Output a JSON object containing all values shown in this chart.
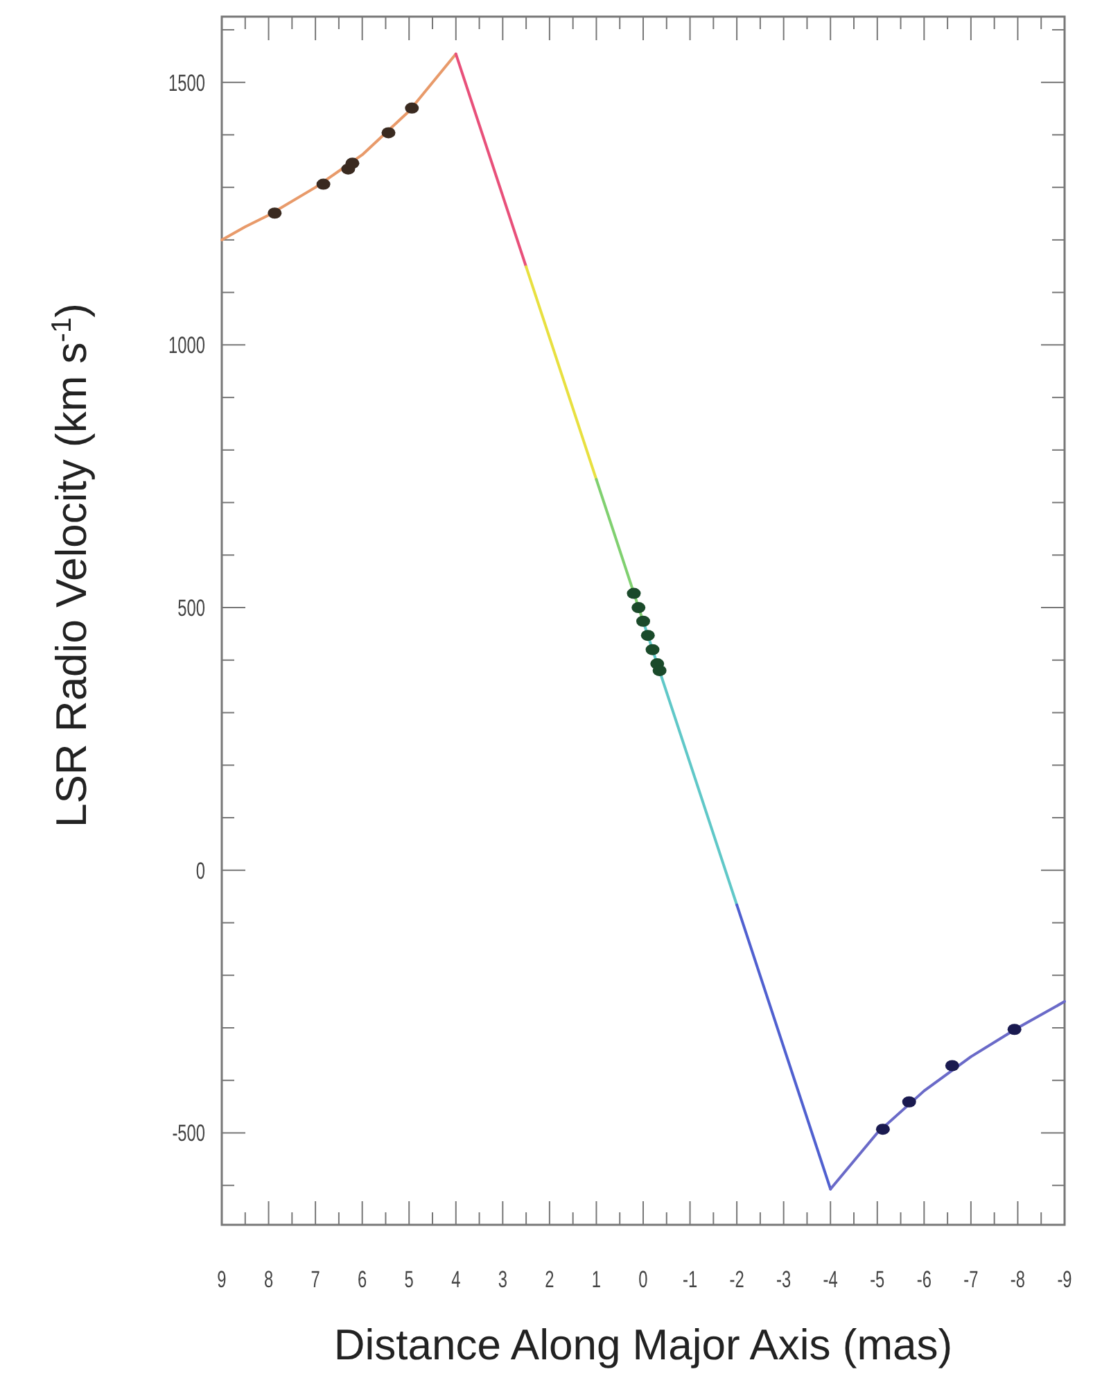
{
  "chart_data": {
    "type": "line",
    "xlabel": "Distance Along Major Axis (mas)",
    "ylabel": "LSR Radio Velocity (km s$^{-1}$)",
    "xlim": [
      9,
      -9
    ],
    "ylim": [
      -675,
      1625
    ],
    "xticks": [
      9,
      {
        "value": 8.5,
        "label": null
      },
      8,
      {
        "value": 7.5,
        "label": null
      },
      7,
      {
        "value": 6.5,
        "label": null
      },
      6,
      {
        "value": 5.5,
        "label": null
      },
      5,
      {
        "value": 4.5,
        "label": null
      },
      4,
      {
        "value": 3.5,
        "label": null
      },
      3,
      {
        "value": 2.5,
        "label": null
      },
      2,
      {
        "value": 1.5,
        "label": null
      },
      1,
      {
        "value": 0.5,
        "label": null
      },
      0,
      {
        "value": -0.5,
        "label": null
      },
      -1,
      {
        "value": -1.5,
        "label": null
      },
      -2,
      {
        "value": -2.5,
        "label": null
      },
      -3,
      {
        "value": -3.5,
        "label": null
      },
      -4,
      {
        "value": -4.5,
        "label": null
      },
      -5,
      {
        "value": -5.5,
        "label": null
      },
      -6,
      {
        "value": -6.5,
        "label": null
      },
      -7,
      {
        "value": -7.5,
        "label": null
      },
      -8,
      {
        "value": -8.5,
        "label": null
      },
      -9
    ],
    "yticks": [
      {
        "value": -600,
        "label": null
      },
      -500,
      {
        "value": -400,
        "label": null
      },
      {
        "value": -300,
        "label": null
      },
      {
        "value": -200,
        "label": null
      },
      {
        "value": -100,
        "label": null
      },
      0,
      {
        "value": 100,
        "label": null
      },
      {
        "value": 200,
        "label": null
      },
      {
        "value": 300,
        "label": null
      },
      {
        "value": 400,
        "label": null
      },
      500,
      {
        "value": 600,
        "label": null
      },
      {
        "value": 700,
        "label": null
      },
      {
        "value": 800,
        "label": null
      },
      {
        "value": 900,
        "label": null
      },
      1000,
      {
        "value": 1100,
        "label": null
      },
      {
        "value": 1200,
        "label": null
      },
      {
        "value": 1300,
        "label": null
      },
      {
        "value": 1400,
        "label": null
      },
      1500,
      {
        "value": 1600,
        "label": null
      }
    ],
    "grid": false,
    "line_style": "solid",
    "series": [
      {
        "color": "#e89a6a",
        "x": [
          9,
          8.5,
          8,
          7,
          6,
          5,
          4
        ],
        "values": [
          1200,
          1225,
          1247,
          1300,
          1362,
          1445,
          1554
        ]
      },
      {
        "color": "#e8507a",
        "x": [
          4,
          2.5
        ],
        "values": [
          1554,
          1149
        ]
      },
      {
        "color": "#e8e040",
        "x": [
          2.5,
          1
        ],
        "values": [
          1149,
          744
        ]
      },
      {
        "color": "#80d070",
        "x": [
          1,
          0
        ],
        "values": [
          744,
          474
        ]
      },
      {
        "color": "#60c8c8",
        "x": [
          0,
          -2
        ],
        "values": [
          474,
          -66
        ]
      },
      {
        "color": "#5060d0",
        "x": [
          -2,
          -4
        ],
        "values": [
          -66,
          -607
        ]
      },
      {
        "color": "#6a6ac8",
        "x": [
          -4,
          -5,
          -6,
          -7,
          -8,
          -9
        ],
        "values": [
          -607,
          -500,
          -420,
          -355,
          -300,
          -250
        ]
      },
      {
        "type": "scatter",
        "color": "#3a2a20",
        "x": [
          7.87,
          6.83,
          6.3,
          6.21,
          5.44,
          4.94
        ],
        "values": [
          1251,
          1306,
          1335,
          1346,
          1404,
          1451
        ],
        "marker": "circle"
      },
      {
        "type": "scatter",
        "color": "#1a4a2a",
        "x": [
          0.2,
          0.1,
          0,
          -0.1,
          -0.2,
          -0.3,
          -0.35
        ],
        "values": [
          527,
          500,
          474,
          447,
          420,
          393,
          380
        ],
        "marker": "circle"
      },
      {
        "type": "scatter",
        "color": "#1a1a50",
        "x": [
          -5.12,
          -5.68,
          -6.6,
          -7.93
        ],
        "values": [
          -493,
          -441,
          -372,
          -303
        ],
        "marker": "circle"
      }
    ]
  }
}
